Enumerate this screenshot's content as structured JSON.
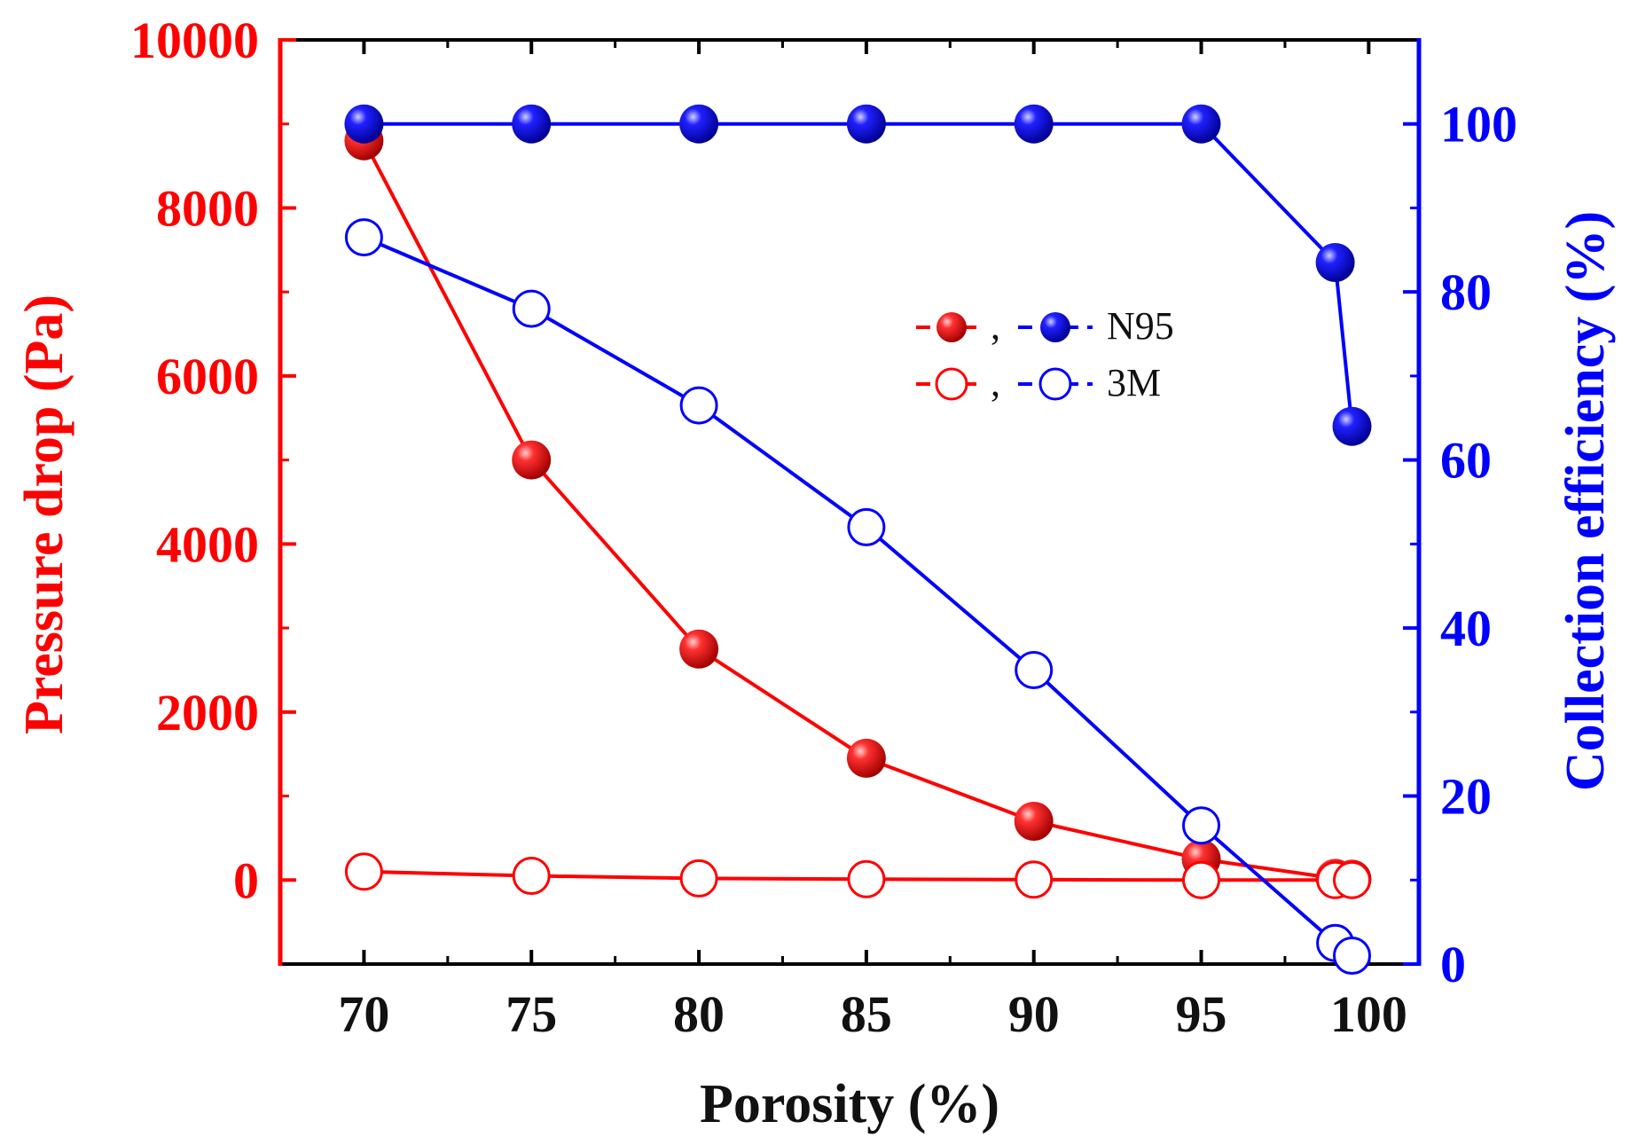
{
  "chart_data": {
    "type": "line",
    "xlabel": "Porosity (%)",
    "ylabel_left": "Pressure drop (Pa)",
    "ylabel_right": "Collection efficiency (%)",
    "xlim": [
      67.5,
      101.5
    ],
    "ylim_left": [
      -1000,
      10000
    ],
    "ylim_right": [
      0,
      110
    ],
    "x_ticks": [
      70,
      75,
      80,
      85,
      90,
      95,
      100
    ],
    "y_left_ticks": [
      0,
      2000,
      4000,
      6000,
      8000,
      10000
    ],
    "y_right_ticks": [
      0,
      20,
      40,
      60,
      80,
      100
    ],
    "colors": {
      "pressure": "#ff0000",
      "efficiency": "#0000ff"
    },
    "series": [
      {
        "name": "N95 pressure drop",
        "axis": "left",
        "marker": "filled",
        "color": "#ff0000",
        "x": [
          70,
          75,
          80,
          85,
          90,
          95,
          99,
          99.5
        ],
        "values": [
          8800,
          5000,
          2750,
          1450,
          700,
          250,
          20,
          10
        ]
      },
      {
        "name": "3M pressure drop",
        "axis": "left",
        "marker": "open",
        "color": "#ff0000",
        "x": [
          70,
          75,
          80,
          85,
          90,
          95,
          99,
          99.5
        ],
        "values": [
          100,
          50,
          20,
          10,
          5,
          0,
          0,
          0
        ]
      },
      {
        "name": "N95 collection efficiency",
        "axis": "right",
        "marker": "filled",
        "color": "#0000ff",
        "x": [
          70,
          75,
          80,
          85,
          90,
          95,
          99,
          99.5
        ],
        "values": [
          100,
          100,
          100,
          100,
          100,
          100,
          83.5,
          64
        ]
      },
      {
        "name": "3M collection efficiency",
        "axis": "right",
        "marker": "open",
        "color": "#0000ff",
        "x": [
          70,
          75,
          80,
          85,
          90,
          95,
          99,
          99.5
        ],
        "values": [
          86.5,
          78,
          66.5,
          52,
          35,
          16.5,
          2.5,
          1
        ]
      }
    ],
    "legend": {
      "entries": [
        {
          "label": "N95",
          "marker": "filled",
          "separator": ","
        },
        {
          "label": "3M",
          "marker": "open",
          "separator": ","
        }
      ]
    }
  }
}
